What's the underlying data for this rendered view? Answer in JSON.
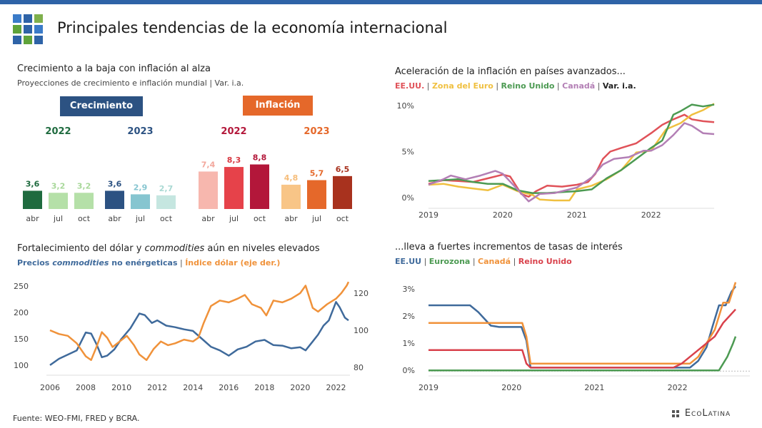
{
  "page": {
    "title": "Principales tendencias de la economía internacional",
    "source": "Fuente: WEO-FMI, FRED y BCRA.",
    "brand": "EcoLatina"
  },
  "panel1": {
    "title": "Crecimiento a la baja con inflación al alza",
    "subtitle": "Proyecciones de crecimiento e inflación mundial | Var. i.a.",
    "sections": [
      {
        "label": "Crecimiento",
        "color": "#2c5282"
      },
      {
        "label": "Inflación",
        "color": "#e5682a"
      }
    ]
  },
  "panel2": {
    "title": "Aceleración de la inflación en países avanzados...",
    "legend": [
      {
        "label": "EE.UU.",
        "color": "#e05259"
      },
      {
        "label": "Zona del Euro",
        "color": "#f0c040"
      },
      {
        "label": "Reino Unido",
        "color": "#4c9a52"
      },
      {
        "label": "Canadá",
        "color": "#b37fb5"
      },
      {
        "label": "Var. i.a.",
        "color": "#222222"
      }
    ]
  },
  "panel3": {
    "title_main": "Fortalecimiento del dólar y ",
    "title_italic": "commodities",
    "title_end": " aún en niveles elevados",
    "legend": [
      {
        "label": "Precios ",
        "italic": "commodities",
        "label2": " no enérgeticas",
        "color": "#3f6a9b"
      },
      {
        "label": "Índice dólar (eje der.)",
        "color": "#f0923a"
      }
    ]
  },
  "panel4": {
    "title": "...lleva a fuertes incrementos de tasas de interés",
    "legend": [
      {
        "label": "EE.UU",
        "color": "#3f6a9b"
      },
      {
        "label": "Eurozona",
        "color": "#4c9a52"
      },
      {
        "label": "Canadá",
        "color": "#f0923a"
      },
      {
        "label": "Reino Unido",
        "color": "#d9414b"
      }
    ]
  },
  "chart_data": [
    {
      "type": "bar",
      "groups": [
        {
          "year": "2022",
          "year_color": "#1f6b3f",
          "categories": [
            "abr",
            "jul",
            "oct"
          ],
          "values": [
            3.6,
            3.2,
            3.2
          ],
          "labels": [
            "3,6",
            "3,2",
            "3,2"
          ],
          "colors": [
            "#1f6b3f",
            "#b5e0a8",
            "#b5e0a8"
          ],
          "label_colors": [
            "#1f6b3f",
            "#a8d89a",
            "#a8d89a"
          ]
        },
        {
          "year": "2023",
          "year_color": "#2c5282",
          "categories": [
            "abr",
            "jul",
            "oct"
          ],
          "values": [
            3.6,
            2.9,
            2.7
          ],
          "labels": [
            "3,6",
            "2,9",
            "2,7"
          ],
          "colors": [
            "#2c5282",
            "#86c5d0",
            "#c5e6e0"
          ],
          "label_colors": [
            "#2c5282",
            "#86c5d0",
            "#a9d9d3"
          ]
        },
        {
          "year": "2022",
          "year_color": "#b3173a",
          "categories": [
            "abr",
            "jul",
            "oct"
          ],
          "values": [
            7.4,
            8.3,
            8.8
          ],
          "labels": [
            "7,4",
            "8,3",
            "8,8"
          ],
          "colors": [
            "#f7b7ae",
            "#e6424a",
            "#b3173a"
          ],
          "label_colors": [
            "#f3a89d",
            "#d83a43",
            "#b3173a"
          ]
        },
        {
          "year": "2023",
          "year_color": "#e5682a",
          "categories": [
            "abr",
            "jul",
            "oct"
          ],
          "values": [
            4.8,
            5.7,
            6.5
          ],
          "labels": [
            "4,8",
            "5,7",
            "6,5"
          ],
          "colors": [
            "#f8c587",
            "#e5682a",
            "#a8321e"
          ],
          "label_colors": [
            "#f6bd7a",
            "#e5682a",
            "#a8321e"
          ]
        }
      ]
    },
    {
      "type": "line",
      "x_ticks": [
        "2019",
        "2020",
        "2021",
        "2022"
      ],
      "y_ticks": [
        "0%",
        "5%",
        "10%"
      ],
      "ylim": [
        -1,
        11
      ],
      "xlim": [
        2019.0,
        2022.85
      ],
      "series": [
        {
          "name": "EE.UU.",
          "color": "#e05259",
          "x": [
            2019.0,
            2019.2,
            2019.4,
            2019.6,
            2019.8,
            2020.0,
            2020.1,
            2020.25,
            2020.35,
            2020.45,
            2020.6,
            2020.8,
            2021.0,
            2021.15,
            2021.25,
            2021.35,
            2021.45,
            2021.6,
            2021.8,
            2022.0,
            2022.15,
            2022.3,
            2022.45,
            2022.55,
            2022.7,
            2022.85
          ],
          "y": [
            1.5,
            1.9,
            1.8,
            1.7,
            2.1,
            2.5,
            2.3,
            0.4,
            0.1,
            0.7,
            1.3,
            1.2,
            1.4,
            1.7,
            2.6,
            4.2,
            5.0,
            5.4,
            5.9,
            7.0,
            7.9,
            8.5,
            9.0,
            8.5,
            8.3,
            8.2
          ]
        },
        {
          "name": "Zona del Euro",
          "color": "#f0c040",
          "x": [
            2019.0,
            2019.2,
            2019.4,
            2019.6,
            2019.8,
            2020.0,
            2020.2,
            2020.4,
            2020.5,
            2020.7,
            2020.9,
            2021.0,
            2021.2,
            2021.4,
            2021.6,
            2021.8,
            2022.0,
            2022.2,
            2022.4,
            2022.55,
            2022.7,
            2022.85
          ],
          "y": [
            1.4,
            1.5,
            1.2,
            1.0,
            0.8,
            1.4,
            0.7,
            0.3,
            -0.2,
            -0.3,
            -0.3,
            0.9,
            1.3,
            2.0,
            3.0,
            4.9,
            5.1,
            7.4,
            8.1,
            9.0,
            9.5,
            10.2
          ]
        },
        {
          "name": "Reino Unido",
          "color": "#4c9a52",
          "x": [
            2019.0,
            2019.2,
            2019.4,
            2019.6,
            2019.8,
            2020.0,
            2020.2,
            2020.4,
            2020.6,
            2020.8,
            2021.0,
            2021.2,
            2021.4,
            2021.6,
            2021.8,
            2022.0,
            2022.15,
            2022.3,
            2022.4,
            2022.55,
            2022.7,
            2022.85
          ],
          "y": [
            1.8,
            1.9,
            2.0,
            1.7,
            1.5,
            1.5,
            0.8,
            0.5,
            0.5,
            0.6,
            0.7,
            0.9,
            2.1,
            3.0,
            4.2,
            5.4,
            6.2,
            9.0,
            9.4,
            10.1,
            9.9,
            10.1
          ]
        },
        {
          "name": "Canadá",
          "color": "#b37fb5",
          "x": [
            2019.0,
            2019.2,
            2019.3,
            2019.5,
            2019.7,
            2019.9,
            2020.0,
            2020.2,
            2020.35,
            2020.5,
            2020.7,
            2020.9,
            2021.0,
            2021.2,
            2021.35,
            2021.5,
            2021.7,
            2021.9,
            2022.0,
            2022.15,
            2022.3,
            2022.45,
            2022.55,
            2022.7,
            2022.85
          ],
          "y": [
            1.4,
            2.0,
            2.4,
            2.0,
            2.4,
            2.9,
            2.6,
            0.9,
            -0.4,
            0.4,
            0.5,
            0.9,
            1.1,
            2.2,
            3.6,
            4.2,
            4.4,
            5.1,
            5.1,
            5.7,
            6.8,
            8.1,
            7.8,
            7.0,
            6.9
          ]
        }
      ]
    },
    {
      "type": "line",
      "x_ticks": [
        "2006",
        "2008",
        "2010",
        "2012",
        "2014",
        "2016",
        "2018",
        "2020",
        "2022"
      ],
      "y_left_ticks": [
        "100",
        "150",
        "200",
        "250"
      ],
      "y_right_ticks": [
        "80",
        "100",
        "120"
      ],
      "ylim_left": [
        85,
        265
      ],
      "ylim_right": [
        77,
        128
      ],
      "xlim": [
        2006.0,
        2022.7
      ],
      "series": [
        {
          "name": "Precios commodities no enérgeticas",
          "axis": "left",
          "color": "#3f6a9b",
          "x": [
            2006.0,
            2006.5,
            2007.0,
            2007.5,
            2008.0,
            2008.3,
            2008.6,
            2008.9,
            2009.2,
            2009.6,
            2010.0,
            2010.5,
            2011.0,
            2011.3,
            2011.7,
            2012.0,
            2012.5,
            2013.0,
            2013.5,
            2014.0,
            2014.5,
            2015.0,
            2015.5,
            2016.0,
            2016.5,
            2017.0,
            2017.5,
            2018.0,
            2018.5,
            2019.0,
            2019.5,
            2020.0,
            2020.3,
            2020.7,
            2021.0,
            2021.3,
            2021.6,
            2022.0,
            2022.2,
            2022.5,
            2022.7
          ],
          "y": [
            100,
            112,
            120,
            128,
            162,
            160,
            140,
            115,
            118,
            130,
            150,
            170,
            198,
            195,
            180,
            185,
            175,
            172,
            168,
            165,
            150,
            135,
            128,
            118,
            130,
            135,
            145,
            148,
            138,
            137,
            132,
            134,
            128,
            145,
            158,
            175,
            185,
            220,
            210,
            190,
            185
          ]
        },
        {
          "name": "Índice dólar (eje der.)",
          "axis": "right",
          "color": "#f0923a",
          "x": [
            2006.0,
            2006.5,
            2007.0,
            2007.5,
            2008.0,
            2008.3,
            2008.6,
            2008.9,
            2009.2,
            2009.5,
            2009.9,
            2010.3,
            2010.7,
            2011.0,
            2011.4,
            2011.8,
            2012.2,
            2012.6,
            2013.0,
            2013.5,
            2014.0,
            2014.3,
            2014.6,
            2015.0,
            2015.5,
            2016.0,
            2016.5,
            2016.9,
            2017.3,
            2017.8,
            2018.1,
            2018.5,
            2019.0,
            2019.5,
            2020.0,
            2020.3,
            2020.7,
            2021.0,
            2021.5,
            2022.0,
            2022.3,
            2022.6,
            2022.7
          ],
          "y": [
            100,
            98,
            97,
            93,
            86,
            84,
            91,
            99,
            96,
            91,
            94,
            97,
            92,
            87,
            84,
            90,
            94,
            92,
            93,
            95,
            94,
            96,
            104,
            113,
            116,
            115,
            117,
            119,
            114,
            112,
            108,
            116,
            115,
            117,
            120,
            124,
            112,
            110,
            114,
            117,
            120,
            124,
            126
          ]
        }
      ]
    },
    {
      "type": "line",
      "x_ticks": [
        "2019",
        "2020",
        "2021",
        "2022"
      ],
      "y_ticks": [
        "0%",
        "1%",
        "2%",
        "3%"
      ],
      "ylim": [
        -0.1,
        3.4
      ],
      "xlim": [
        2019.0,
        2022.7
      ],
      "series": [
        {
          "name": "EE.UU",
          "color": "#3f6a9b",
          "x": [
            2019.0,
            2019.5,
            2019.6,
            2019.75,
            2019.85,
            2020.12,
            2020.18,
            2020.23,
            2021.5,
            2022.15,
            2022.25,
            2022.35,
            2022.42,
            2022.5,
            2022.58,
            2022.65,
            2022.7
          ],
          "y": [
            2.4,
            2.4,
            2.15,
            1.65,
            1.6,
            1.6,
            1.1,
            0.1,
            0.1,
            0.1,
            0.35,
            0.85,
            1.6,
            2.4,
            2.4,
            2.9,
            3.1
          ]
        },
        {
          "name": "Eurozona",
          "color": "#4c9a52",
          "x": [
            2019.0,
            2022.5,
            2022.6,
            2022.67,
            2022.7
          ],
          "y": [
            0.0,
            0.0,
            0.5,
            1.0,
            1.25
          ]
        },
        {
          "name": "Canadá",
          "color": "#f0923a",
          "x": [
            2019.0,
            2020.13,
            2020.18,
            2020.23,
            2022.15,
            2022.25,
            2022.35,
            2022.45,
            2022.55,
            2022.62,
            2022.7
          ],
          "y": [
            1.75,
            1.75,
            1.25,
            0.25,
            0.25,
            0.5,
            1.0,
            1.5,
            2.5,
            2.5,
            3.25
          ]
        },
        {
          "name": "Reino Unido",
          "color": "#d9414b",
          "x": [
            2019.0,
            2020.13,
            2020.18,
            2020.23,
            2021.95,
            2022.05,
            2022.15,
            2022.25,
            2022.35,
            2022.45,
            2022.55,
            2022.7
          ],
          "y": [
            0.75,
            0.75,
            0.25,
            0.1,
            0.1,
            0.25,
            0.5,
            0.75,
            1.0,
            1.25,
            1.75,
            2.25
          ]
        }
      ]
    }
  ]
}
